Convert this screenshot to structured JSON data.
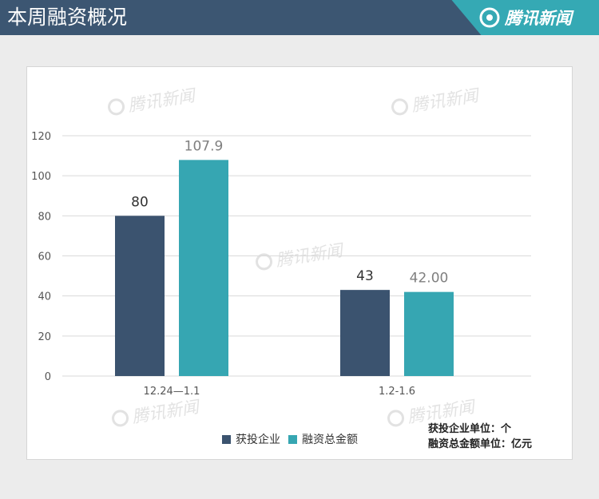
{
  "header": {
    "title": "本周融资概况",
    "brand": "腾讯新闻"
  },
  "watermark_text": "腾讯新闻",
  "colors": {
    "header_bg": "#3c5672",
    "brand_bg": "#35a9b4",
    "series_1": "#3b536f",
    "series_2": "#36a6b2",
    "grid": "#d9d9d9"
  },
  "units": {
    "line1": "获投企业单位：个",
    "line2": "融资总金额单位：亿元"
  },
  "chart_data": {
    "type": "bar",
    "categories": [
      "12.24—1.1",
      "1.2-1.6"
    ],
    "series": [
      {
        "name": "获投企业",
        "values": [
          80,
          43
        ],
        "labels": [
          "80",
          "43"
        ]
      },
      {
        "name": "融资总金额",
        "values": [
          107.9,
          42.0
        ],
        "labels": [
          "107.9",
          "42.00"
        ]
      }
    ],
    "ylim": [
      0,
      120
    ],
    "yticks": [
      0,
      20,
      40,
      60,
      80,
      100,
      120
    ],
    "grid": true,
    "legend": "bottom"
  }
}
